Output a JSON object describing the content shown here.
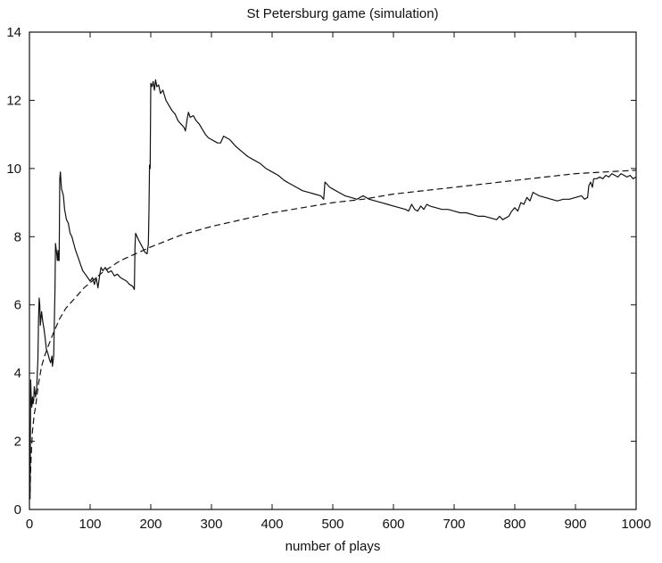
{
  "chart_data": {
    "type": "line",
    "title": "St Petersburg game (simulation)",
    "xlabel": "number of plays",
    "ylabel": "",
    "xlim": [
      0,
      1000
    ],
    "ylim": [
      0,
      14
    ],
    "xticks": [
      0,
      100,
      200,
      300,
      400,
      500,
      600,
      700,
      800,
      900,
      1000
    ],
    "yticks": [
      0,
      2,
      4,
      6,
      8,
      10,
      12,
      14
    ],
    "grid": false,
    "legend": "none",
    "colors": {
      "line": "#111111",
      "frame": "#111111",
      "background": "#ffffff"
    },
    "series": [
      {
        "style": "solid",
        "points": [
          [
            1,
            0.3
          ],
          [
            2,
            3.8
          ],
          [
            3,
            3.2
          ],
          [
            4,
            3.0
          ],
          [
            5,
            3.3
          ],
          [
            6,
            3.1
          ],
          [
            7,
            3.2
          ],
          [
            8,
            3.6
          ],
          [
            10,
            3.3
          ],
          [
            12,
            3.6
          ],
          [
            13,
            4.0
          ],
          [
            14,
            4.4
          ],
          [
            15,
            5.6
          ],
          [
            16,
            6.2
          ],
          [
            17,
            6.0
          ],
          [
            18,
            5.4
          ],
          [
            20,
            5.8
          ],
          [
            22,
            5.5
          ],
          [
            24,
            5.3
          ],
          [
            26,
            5.0
          ],
          [
            28,
            4.7
          ],
          [
            30,
            4.6
          ],
          [
            33,
            4.4
          ],
          [
            35,
            4.3
          ],
          [
            37,
            4.5
          ],
          [
            38,
            4.2
          ],
          [
            40,
            4.5
          ],
          [
            41,
            5.5
          ],
          [
            42,
            6.4
          ],
          [
            43,
            7.8
          ],
          [
            45,
            7.5
          ],
          [
            46,
            7.3
          ],
          [
            47,
            7.6
          ],
          [
            48,
            7.3
          ],
          [
            49,
            7.3
          ],
          [
            50,
            9.7
          ],
          [
            51,
            9.9
          ],
          [
            52,
            9.6
          ],
          [
            53,
            9.4
          ],
          [
            56,
            9.2
          ],
          [
            58,
            8.8
          ],
          [
            61,
            8.5
          ],
          [
            64,
            8.4
          ],
          [
            67,
            8.1
          ],
          [
            70,
            8.0
          ],
          [
            73,
            7.8
          ],
          [
            76,
            7.6
          ],
          [
            80,
            7.4
          ],
          [
            84,
            7.2
          ],
          [
            88,
            7.0
          ],
          [
            92,
            6.9
          ],
          [
            96,
            6.8
          ],
          [
            100,
            6.7
          ],
          [
            104,
            6.8
          ],
          [
            107,
            6.6
          ],
          [
            110,
            6.8
          ],
          [
            113,
            6.5
          ],
          [
            116,
            6.9
          ],
          [
            118,
            7.1
          ],
          [
            121,
            7.0
          ],
          [
            125,
            7.1
          ],
          [
            130,
            6.95
          ],
          [
            135,
            7.0
          ],
          [
            140,
            6.85
          ],
          [
            145,
            6.9
          ],
          [
            150,
            6.8
          ],
          [
            155,
            6.75
          ],
          [
            160,
            6.7
          ],
          [
            165,
            6.6
          ],
          [
            170,
            6.55
          ],
          [
            173,
            6.45
          ],
          [
            174,
            7.7
          ],
          [
            175,
            8.1
          ],
          [
            180,
            7.9
          ],
          [
            186,
            7.7
          ],
          [
            190,
            7.55
          ],
          [
            194,
            7.5
          ],
          [
            196,
            7.8
          ],
          [
            197,
            8.8
          ],
          [
            198,
            10.1
          ],
          [
            199,
            10.0
          ],
          [
            200,
            12.5
          ],
          [
            202,
            12.4
          ],
          [
            204,
            12.55
          ],
          [
            206,
            12.3
          ],
          [
            208,
            12.6
          ],
          [
            210,
            12.4
          ],
          [
            213,
            12.45
          ],
          [
            216,
            12.2
          ],
          [
            220,
            12.3
          ],
          [
            225,
            12.0
          ],
          [
            230,
            11.85
          ],
          [
            235,
            11.7
          ],
          [
            240,
            11.6
          ],
          [
            245,
            11.4
          ],
          [
            250,
            11.3
          ],
          [
            255,
            11.2
          ],
          [
            257,
            11.1
          ],
          [
            260,
            11.45
          ],
          [
            262,
            11.65
          ],
          [
            265,
            11.5
          ],
          [
            270,
            11.55
          ],
          [
            275,
            11.4
          ],
          [
            280,
            11.3
          ],
          [
            285,
            11.15
          ],
          [
            290,
            11.0
          ],
          [
            295,
            10.9
          ],
          [
            300,
            10.85
          ],
          [
            305,
            10.8
          ],
          [
            310,
            10.75
          ],
          [
            315,
            10.75
          ],
          [
            320,
            10.95
          ],
          [
            325,
            10.9
          ],
          [
            330,
            10.85
          ],
          [
            335,
            10.75
          ],
          [
            340,
            10.65
          ],
          [
            350,
            10.5
          ],
          [
            360,
            10.35
          ],
          [
            370,
            10.25
          ],
          [
            380,
            10.15
          ],
          [
            390,
            10.0
          ],
          [
            400,
            9.9
          ],
          [
            410,
            9.8
          ],
          [
            420,
            9.65
          ],
          [
            430,
            9.55
          ],
          [
            440,
            9.45
          ],
          [
            450,
            9.35
          ],
          [
            460,
            9.3
          ],
          [
            470,
            9.25
          ],
          [
            480,
            9.2
          ],
          [
            485,
            9.1
          ],
          [
            487,
            9.6
          ],
          [
            490,
            9.55
          ],
          [
            495,
            9.45
          ],
          [
            500,
            9.4
          ],
          [
            510,
            9.3
          ],
          [
            520,
            9.2
          ],
          [
            530,
            9.15
          ],
          [
            540,
            9.1
          ],
          [
            550,
            9.2
          ],
          [
            560,
            9.1
          ],
          [
            570,
            9.05
          ],
          [
            580,
            9.0
          ],
          [
            590,
            8.95
          ],
          [
            600,
            8.9
          ],
          [
            610,
            8.85
          ],
          [
            620,
            8.8
          ],
          [
            625,
            8.75
          ],
          [
            630,
            8.95
          ],
          [
            635,
            8.8
          ],
          [
            640,
            8.75
          ],
          [
            645,
            8.9
          ],
          [
            650,
            8.8
          ],
          [
            655,
            8.95
          ],
          [
            660,
            8.9
          ],
          [
            670,
            8.85
          ],
          [
            680,
            8.8
          ],
          [
            690,
            8.8
          ],
          [
            700,
            8.75
          ],
          [
            710,
            8.7
          ],
          [
            720,
            8.7
          ],
          [
            730,
            8.65
          ],
          [
            740,
            8.6
          ],
          [
            750,
            8.6
          ],
          [
            760,
            8.55
          ],
          [
            770,
            8.5
          ],
          [
            775,
            8.6
          ],
          [
            780,
            8.5
          ],
          [
            785,
            8.55
          ],
          [
            790,
            8.6
          ],
          [
            795,
            8.75
          ],
          [
            800,
            8.85
          ],
          [
            805,
            8.75
          ],
          [
            810,
            9.0
          ],
          [
            815,
            8.95
          ],
          [
            820,
            9.15
          ],
          [
            825,
            9.05
          ],
          [
            830,
            9.3
          ],
          [
            835,
            9.25
          ],
          [
            840,
            9.2
          ],
          [
            850,
            9.15
          ],
          [
            860,
            9.1
          ],
          [
            870,
            9.05
          ],
          [
            880,
            9.1
          ],
          [
            890,
            9.1
          ],
          [
            900,
            9.15
          ],
          [
            910,
            9.2
          ],
          [
            915,
            9.1
          ],
          [
            920,
            9.15
          ],
          [
            922,
            9.5
          ],
          [
            925,
            9.6
          ],
          [
            928,
            9.45
          ],
          [
            930,
            9.7
          ],
          [
            935,
            9.7
          ],
          [
            940,
            9.75
          ],
          [
            945,
            9.7
          ],
          [
            950,
            9.8
          ],
          [
            955,
            9.75
          ],
          [
            960,
            9.85
          ],
          [
            965,
            9.8
          ],
          [
            970,
            9.75
          ],
          [
            975,
            9.85
          ],
          [
            980,
            9.8
          ],
          [
            985,
            9.75
          ],
          [
            990,
            9.8
          ],
          [
            995,
            9.7
          ],
          [
            1000,
            9.75
          ]
        ]
      },
      {
        "style": "dashed",
        "points": [
          [
            1,
            0.5
          ],
          [
            2,
            1.2
          ],
          [
            3,
            1.6
          ],
          [
            5,
            2.3
          ],
          [
            8,
            2.8
          ],
          [
            10,
            3.0
          ],
          [
            15,
            3.7
          ],
          [
            20,
            4.2
          ],
          [
            25,
            4.5
          ],
          [
            30,
            4.75
          ],
          [
            40,
            5.2
          ],
          [
            50,
            5.6
          ],
          [
            60,
            5.9
          ],
          [
            70,
            6.1
          ],
          [
            80,
            6.3
          ],
          [
            90,
            6.5
          ],
          [
            100,
            6.65
          ],
          [
            120,
            6.95
          ],
          [
            150,
            7.3
          ],
          [
            175,
            7.5
          ],
          [
            200,
            7.7
          ],
          [
            250,
            8.05
          ],
          [
            300,
            8.3
          ],
          [
            350,
            8.5
          ],
          [
            400,
            8.7
          ],
          [
            450,
            8.85
          ],
          [
            500,
            9.0
          ],
          [
            550,
            9.1
          ],
          [
            600,
            9.25
          ],
          [
            650,
            9.35
          ],
          [
            700,
            9.45
          ],
          [
            750,
            9.55
          ],
          [
            800,
            9.65
          ],
          [
            850,
            9.75
          ],
          [
            900,
            9.85
          ],
          [
            950,
            9.9
          ],
          [
            1000,
            9.95
          ]
        ]
      }
    ]
  }
}
